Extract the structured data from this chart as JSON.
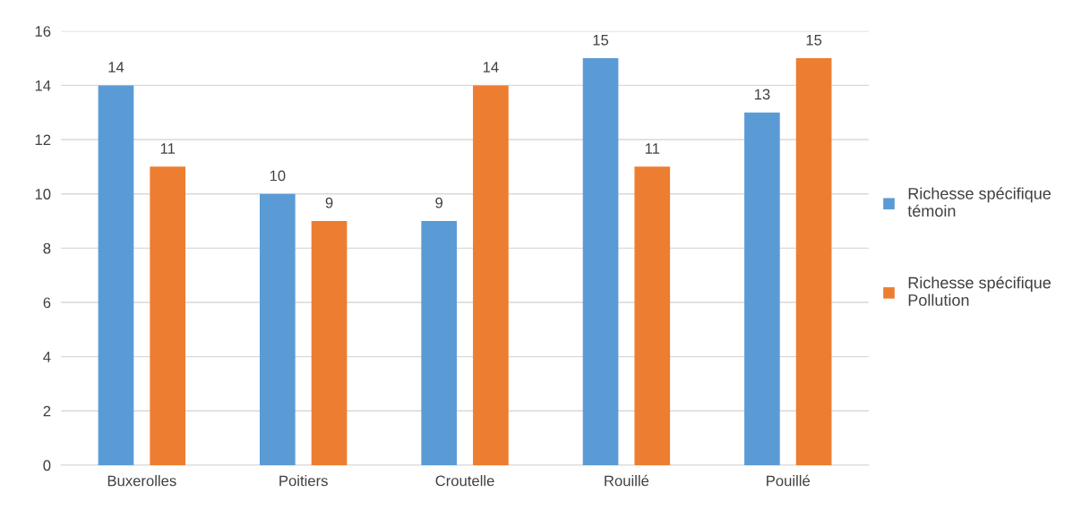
{
  "chart_data": {
    "type": "bar",
    "categories": [
      "Buxerolles",
      "Poitiers",
      "Croutelle",
      "Rouillé",
      "Pouillé"
    ],
    "series": [
      {
        "name": "Richesse spécifique témoin",
        "color": "#5b9bd5",
        "values": [
          14,
          10,
          9,
          15,
          13
        ]
      },
      {
        "name": "Richesse spécifique Pollution",
        "color": "#ed7d31",
        "values": [
          11,
          9,
          14,
          11,
          15
        ]
      }
    ],
    "ylim": [
      0,
      16
    ],
    "yticks": [
      0,
      2,
      4,
      6,
      8,
      10,
      12,
      14,
      16
    ],
    "grid": "y",
    "legend": "right",
    "data_labels": true
  }
}
